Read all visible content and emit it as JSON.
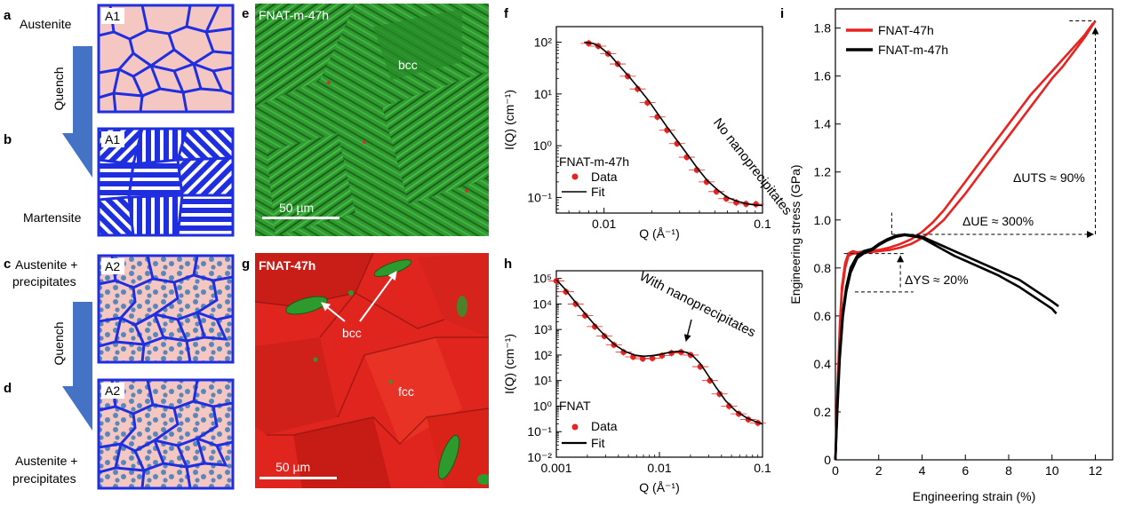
{
  "panel_letters": {
    "a": "a",
    "b": "b",
    "c": "c",
    "d": "d",
    "e": "e",
    "f": "f",
    "g": "g",
    "h": "h",
    "i": "i"
  },
  "schematic": {
    "austenite": "Austenite",
    "quench": "Quench",
    "martensite": "Martensite",
    "austenite_plus": "Austenite +",
    "precipitates": "precipitates",
    "label_a1": "A1",
    "label_a2": "A2"
  },
  "micrographs": {
    "e_title": "FNAT-m-47h",
    "e_bcc": "bcc",
    "e_scale": "50 µm",
    "g_title": "FNAT-47h",
    "g_bcc": "bcc",
    "g_fcc": "fcc",
    "g_scale": "50 µm"
  },
  "colors": {
    "schematic_blue": "#1f2fe0",
    "schematic_fill": "#f4c7c3",
    "precip": "#5a86b8",
    "arrow_blue": "#4472c4",
    "bcc_green": "#2c9a2c",
    "fcc_red": "#e0251f",
    "sans_red": "#e8221f",
    "fit_black": "#000000"
  },
  "chart_data": [
    {
      "id": "f",
      "type": "scatter",
      "title": "",
      "xlabel": "Q (Å⁻¹)",
      "ylabel": "I(Q) (cm⁻¹)",
      "xscale": "log",
      "yscale": "log",
      "xlim": [
        0.005,
        0.1
      ],
      "ylim": [
        0.05,
        200
      ],
      "xticks": [
        {
          "v": 0.01,
          "label": "0.01"
        },
        {
          "v": 0.1,
          "label": "0.1"
        }
      ],
      "yticks": [
        {
          "v": 100,
          "label": "10²"
        },
        {
          "v": 10,
          "label": "10¹"
        },
        {
          "v": 1,
          "label": "10⁰"
        },
        {
          "v": 0.1,
          "label": "10⁻¹"
        }
      ],
      "annotation": "No nanoprecipitates",
      "legend_title": "FNAT-m-47h",
      "legend": [
        "Data",
        "Fit"
      ],
      "series": [
        {
          "name": "Data",
          "kind": "points",
          "x": [
            0.008,
            0.0092,
            0.0106,
            0.0122,
            0.0141,
            0.0163,
            0.0188,
            0.0217,
            0.025,
            0.0289,
            0.0333,
            0.0385,
            0.0444,
            0.0512,
            0.0591,
            0.0682,
            0.0787,
            0.0909
          ],
          "y": [
            95,
            84,
            60,
            38,
            22,
            12.5,
            6.8,
            3.6,
            2.0,
            1.1,
            0.6,
            0.34,
            0.2,
            0.13,
            0.095,
            0.08,
            0.075,
            0.074
          ]
        },
        {
          "name": "Fit",
          "kind": "line",
          "x": [
            0.0075,
            0.0085,
            0.0095,
            0.011,
            0.0125,
            0.0145,
            0.0165,
            0.019,
            0.022,
            0.025,
            0.029,
            0.034,
            0.039,
            0.045,
            0.052,
            0.06,
            0.069,
            0.08,
            0.092,
            0.1
          ],
          "y": [
            100,
            95,
            80,
            55,
            35,
            21,
            13,
            7.6,
            4.0,
            2.3,
            1.25,
            0.64,
            0.36,
            0.21,
            0.14,
            0.1,
            0.085,
            0.075,
            0.071,
            0.07
          ]
        }
      ]
    },
    {
      "id": "h",
      "type": "scatter",
      "title": "",
      "xlabel": "Q (Å⁻¹)",
      "ylabel": "I(Q) (cm⁻¹)",
      "xscale": "log",
      "yscale": "log",
      "xlim": [
        0.001,
        0.1
      ],
      "ylim": [
        0.01,
        200000
      ],
      "xticks": [
        {
          "v": 0.001,
          "label": "0.001"
        },
        {
          "v": 0.01,
          "label": "0.01"
        },
        {
          "v": 0.1,
          "label": "0.1"
        }
      ],
      "yticks": [
        {
          "v": 100000,
          "label": "10⁵"
        },
        {
          "v": 10000,
          "label": "10⁴"
        },
        {
          "v": 1000,
          "label": "10³"
        },
        {
          "v": 100,
          "label": "10²"
        },
        {
          "v": 10,
          "label": "10¹"
        },
        {
          "v": 1,
          "label": "10⁰"
        },
        {
          "v": 0.1,
          "label": "10⁻¹"
        },
        {
          "v": 0.01,
          "label": "10⁻²"
        }
      ],
      "annotation": "With nanoprecipitates",
      "legend_title": "FNAT",
      "legend": [
        "Data",
        "Fit"
      ],
      "series": [
        {
          "name": "Data",
          "kind": "points",
          "x": [
            0.001,
            0.00124,
            0.00154,
            0.0019,
            0.00236,
            0.00292,
            0.00362,
            0.00449,
            0.00556,
            0.00689,
            0.00854,
            0.0106,
            0.0131,
            0.0162,
            0.0201,
            0.0249,
            0.0309,
            0.0383,
            0.0474,
            0.0588,
            0.0728,
            0.0902
          ],
          "y": [
            80000,
            30000,
            10000,
            3500,
            1300,
            550,
            250,
            130,
            85,
            72,
            75,
            95,
            120,
            130,
            100,
            35,
            10,
            3,
            1.0,
            0.5,
            0.3,
            0.22
          ]
        },
        {
          "name": "Fit",
          "kind": "line",
          "x": [
            0.001,
            0.0012,
            0.0015,
            0.0019,
            0.0024,
            0.003,
            0.0037,
            0.0046,
            0.0057,
            0.007,
            0.0086,
            0.0105,
            0.0128,
            0.0155,
            0.018,
            0.021,
            0.025,
            0.03,
            0.036,
            0.044,
            0.055,
            0.07,
            0.085,
            0.1
          ],
          "y": [
            90000,
            40000,
            13000,
            4200,
            1400,
            550,
            250,
            140,
            100,
            90,
            95,
            110,
            130,
            140,
            130,
            95,
            45,
            15,
            5,
            1.6,
            0.65,
            0.35,
            0.25,
            0.2
          ]
        }
      ]
    },
    {
      "id": "i",
      "type": "line",
      "title": "",
      "xlabel": "Engineering strain (%)",
      "ylabel": "Engineering stress (GPa)",
      "xlim": [
        0,
        12.8
      ],
      "ylim": [
        0,
        1.88
      ],
      "xticks": [
        {
          "v": 0,
          "label": "0"
        },
        {
          "v": 2,
          "label": "2"
        },
        {
          "v": 4,
          "label": "4"
        },
        {
          "v": 6,
          "label": "6"
        },
        {
          "v": 8,
          "label": "8"
        },
        {
          "v": 10,
          "label": "10"
        },
        {
          "v": 12,
          "label": "12"
        }
      ],
      "yticks": [
        {
          "v": 0,
          "label": "0"
        },
        {
          "v": 0.2,
          "label": "0.2"
        },
        {
          "v": 0.4,
          "label": "0.4"
        },
        {
          "v": 0.6,
          "label": "0.6"
        },
        {
          "v": 0.8,
          "label": "0.8"
        },
        {
          "v": 1.0,
          "label": "1.0"
        },
        {
          "v": 1.2,
          "label": "1.2"
        },
        {
          "v": 1.4,
          "label": "1.4"
        },
        {
          "v": 1.6,
          "label": "1.6"
        },
        {
          "v": 1.8,
          "label": "1.8"
        }
      ],
      "legend_position": "top-left",
      "annotations": {
        "uts": "ΔUTS ≈ 90%",
        "ue": "ΔUE ≈ 300%",
        "ys": "ΔYS ≈ 20%"
      },
      "series": [
        {
          "name": "FNAT-47h",
          "color": "#e8221f",
          "x": [
            0,
            0.1,
            0.2,
            0.3,
            0.45,
            0.6,
            0.8,
            1.0,
            1.5,
            2.0,
            2.5,
            3.0,
            3.5,
            4.0,
            4.5,
            5.0,
            5.5,
            6.0,
            6.5,
            7.0,
            7.5,
            8.0,
            8.5,
            9.0,
            9.5,
            10.0,
            10.5,
            11.0,
            11.5,
            11.9
          ],
          "y": [
            0,
            0.3,
            0.55,
            0.72,
            0.82,
            0.86,
            0.87,
            0.865,
            0.87,
            0.875,
            0.885,
            0.9,
            0.92,
            0.95,
            0.99,
            1.04,
            1.1,
            1.16,
            1.22,
            1.28,
            1.34,
            1.4,
            1.46,
            1.52,
            1.57,
            1.62,
            1.67,
            1.72,
            1.77,
            1.82
          ]
        },
        {
          "name": "FNAT-47h",
          "color": "#e8221f",
          "x": [
            0,
            0.1,
            0.2,
            0.3,
            0.45,
            0.6,
            0.8,
            1.0,
            1.5,
            2.0,
            2.5,
            3.0,
            3.5,
            4.0,
            4.5,
            5.0,
            5.5,
            6.0,
            6.5,
            7.0,
            7.5,
            8.0,
            8.5,
            9.0,
            9.5,
            10.0,
            10.5,
            11.0,
            11.5,
            12.0
          ],
          "y": [
            0,
            0.28,
            0.52,
            0.7,
            0.8,
            0.85,
            0.86,
            0.86,
            0.865,
            0.87,
            0.875,
            0.885,
            0.9,
            0.925,
            0.96,
            1.0,
            1.055,
            1.11,
            1.17,
            1.23,
            1.29,
            1.35,
            1.41,
            1.47,
            1.53,
            1.59,
            1.64,
            1.7,
            1.76,
            1.83
          ]
        },
        {
          "name": "FNAT-m-47h",
          "color": "#000000",
          "x": [
            0,
            0.1,
            0.2,
            0.35,
            0.5,
            0.7,
            1.0,
            1.3,
            1.7,
            2.0,
            2.4,
            2.8,
            3.2,
            3.6,
            4.0,
            4.5,
            5.0,
            5.5,
            6.0,
            6.5,
            7.0,
            7.5,
            8.0,
            8.5,
            9.0,
            9.5,
            10.0,
            10.3
          ],
          "y": [
            0,
            0.25,
            0.45,
            0.62,
            0.72,
            0.8,
            0.85,
            0.87,
            0.88,
            0.9,
            0.92,
            0.935,
            0.94,
            0.935,
            0.93,
            0.91,
            0.89,
            0.87,
            0.85,
            0.83,
            0.81,
            0.79,
            0.77,
            0.75,
            0.72,
            0.69,
            0.66,
            0.64
          ]
        },
        {
          "name": "FNAT-m-47h",
          "color": "#000000",
          "x": [
            0,
            0.1,
            0.2,
            0.35,
            0.5,
            0.7,
            1.0,
            1.3,
            1.7,
            2.0,
            2.4,
            2.8,
            3.2,
            3.6,
            4.0,
            4.5,
            5.0,
            5.5,
            6.0,
            6.5,
            7.0,
            7.5,
            8.0,
            8.5,
            9.0,
            9.5,
            10.0,
            10.2
          ],
          "y": [
            0,
            0.22,
            0.42,
            0.6,
            0.7,
            0.78,
            0.84,
            0.86,
            0.875,
            0.895,
            0.915,
            0.93,
            0.937,
            0.932,
            0.925,
            0.9,
            0.875,
            0.85,
            0.83,
            0.81,
            0.79,
            0.77,
            0.745,
            0.72,
            0.69,
            0.66,
            0.63,
            0.61
          ]
        }
      ]
    }
  ]
}
